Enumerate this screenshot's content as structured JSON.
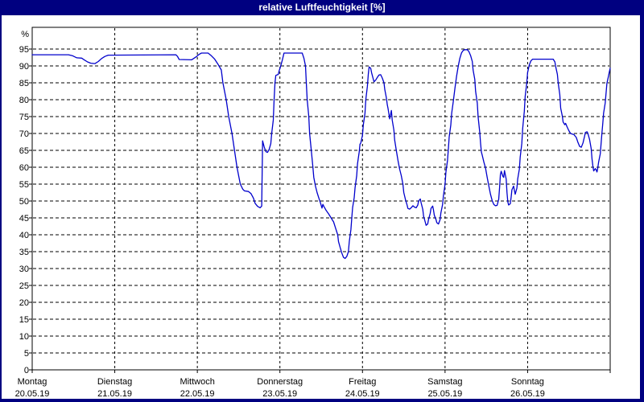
{
  "window": {
    "title": "relative Luftfeuchtigkeit [%]",
    "title_bar_color": "#000080",
    "border_color": "#000080",
    "background": "#ffffff"
  },
  "chart_data": {
    "type": "line",
    "title": "relative Luftfeuchtigkeit [%]",
    "ylabel": "%",
    "unit_label": "%",
    "y_axis": {
      "min": 0,
      "max": 101,
      "tick_step": 5,
      "ticks": [
        0,
        5,
        10,
        15,
        20,
        25,
        30,
        35,
        40,
        45,
        50,
        55,
        60,
        65,
        70,
        75,
        80,
        85,
        90,
        95
      ],
      "grid": "dashed"
    },
    "x_axis": {
      "grid": "dashed vertical line at each day boundary",
      "range_days": [
        0,
        7
      ],
      "days": [
        {
          "name": "Montag",
          "date": "20.05.19"
        },
        {
          "name": "Dienstag",
          "date": "21.05.19"
        },
        {
          "name": "Mittwoch",
          "date": "22.05.19"
        },
        {
          "name": "Donnerstag",
          "date": "23.05.19"
        },
        {
          "name": "Freitag",
          "date": "24.05.19"
        },
        {
          "name": "Samstag",
          "date": "25.05.19"
        },
        {
          "name": "Sonntag",
          "date": "26.05.19"
        }
      ]
    },
    "grid_color": "#000000",
    "legend": null,
    "series": [
      {
        "name": "relative Luftfeuchtigkeit",
        "color": "#0000cc",
        "x_unit": "day index (0 = Montag 20.05.19 00:00)",
        "points": [
          [
            0,
            93.3
          ],
          [
            0.44,
            93.3
          ],
          [
            0.49,
            93
          ],
          [
            0.54,
            92.4
          ],
          [
            0.6,
            92.3
          ],
          [
            0.63,
            91.8
          ],
          [
            0.67,
            91.2
          ],
          [
            0.71,
            90.8
          ],
          [
            0.76,
            90.7
          ],
          [
            0.8,
            91.3
          ],
          [
            0.84,
            92.2
          ],
          [
            0.88,
            92.8
          ],
          [
            0.92,
            93.2
          ],
          [
            1.74,
            93.3
          ],
          [
            1.76,
            92.8
          ],
          [
            1.78,
            91.9
          ],
          [
            1.93,
            91.8
          ],
          [
            1.98,
            92.6
          ],
          [
            2.02,
            93.4
          ],
          [
            2.05,
            93.8
          ],
          [
            2.13,
            93.8
          ],
          [
            2.17,
            93
          ],
          [
            2.21,
            92
          ],
          [
            2.25,
            90.5
          ],
          [
            2.29,
            88.8
          ],
          [
            2.31,
            85
          ],
          [
            2.35,
            80
          ],
          [
            2.38,
            75
          ],
          [
            2.42,
            70
          ],
          [
            2.45,
            65
          ],
          [
            2.48,
            60
          ],
          [
            2.52,
            55
          ],
          [
            2.55,
            53.5
          ],
          [
            2.57,
            53
          ],
          [
            2.62,
            52.8
          ],
          [
            2.65,
            52.2
          ],
          [
            2.68,
            50.8
          ],
          [
            2.7,
            49.3
          ],
          [
            2.73,
            48.4
          ],
          [
            2.76,
            48
          ],
          [
            2.78,
            48.5
          ],
          [
            2.79,
            67.8
          ],
          [
            2.81,
            66
          ],
          [
            2.83,
            64.6
          ],
          [
            2.85,
            64.4
          ],
          [
            2.87,
            65.3
          ],
          [
            2.89,
            67
          ],
          [
            2.9,
            70
          ],
          [
            2.92,
            74
          ],
          [
            2.93,
            80
          ],
          [
            2.94,
            85
          ],
          [
            2.95,
            87.2
          ],
          [
            2.98,
            87.5
          ],
          [
            2.99,
            88.5
          ],
          [
            3.01,
            90
          ],
          [
            3.03,
            91.8
          ],
          [
            3.05,
            93.8
          ],
          [
            3.27,
            93.8
          ],
          [
            3.29,
            92.3
          ],
          [
            3.31,
            90
          ],
          [
            3.32,
            85
          ],
          [
            3.33,
            80
          ],
          [
            3.35,
            75
          ],
          [
            3.36,
            70
          ],
          [
            3.38,
            65
          ],
          [
            3.4,
            60
          ],
          [
            3.41,
            57
          ],
          [
            3.43,
            54.5
          ],
          [
            3.45,
            52.5
          ],
          [
            3.47,
            51
          ],
          [
            3.49,
            49.5
          ],
          [
            3.51,
            47.9
          ],
          [
            3.52,
            49
          ],
          [
            3.53,
            48.5
          ],
          [
            3.56,
            47.2
          ],
          [
            3.59,
            46.2
          ],
          [
            3.62,
            45
          ],
          [
            3.65,
            43.8
          ],
          [
            3.67,
            42.3
          ],
          [
            3.7,
            40
          ],
          [
            3.71,
            38
          ],
          [
            3.73,
            36.2
          ],
          [
            3.75,
            34.6
          ],
          [
            3.77,
            33.3
          ],
          [
            3.79,
            33
          ],
          [
            3.81,
            33.6
          ],
          [
            3.83,
            35
          ],
          [
            3.84,
            38
          ],
          [
            3.86,
            41.5
          ],
          [
            3.87,
            45
          ],
          [
            3.88,
            48
          ],
          [
            3.9,
            51
          ],
          [
            3.91,
            54
          ],
          [
            3.93,
            57.5
          ],
          [
            3.94,
            61
          ],
          [
            3.96,
            64.5
          ],
          [
            3.97,
            66.8
          ],
          [
            3.98,
            67.2
          ],
          [
            4,
            69.5
          ],
          [
            4.01,
            72.5
          ],
          [
            4.03,
            76
          ],
          [
            4.04,
            80
          ],
          [
            4.06,
            84
          ],
          [
            4.07,
            87.5
          ],
          [
            4.08,
            89.7
          ],
          [
            4.1,
            89.3
          ],
          [
            4.11,
            88
          ],
          [
            4.13,
            86.2
          ],
          [
            4.14,
            85.3
          ],
          [
            4.16,
            85.8
          ],
          [
            4.18,
            86.6
          ],
          [
            4.2,
            87.3
          ],
          [
            4.22,
            87.4
          ],
          [
            4.24,
            86.4
          ],
          [
            4.26,
            85
          ],
          [
            4.27,
            83
          ],
          [
            4.29,
            80.5
          ],
          [
            4.3,
            78.5
          ],
          [
            4.31,
            77.3
          ],
          [
            4.33,
            74.3
          ],
          [
            4.35,
            76.8
          ],
          [
            4.36,
            74
          ],
          [
            4.38,
            71
          ],
          [
            4.39,
            68
          ],
          [
            4.41,
            65
          ],
          [
            4.43,
            62
          ],
          [
            4.45,
            59.5
          ],
          [
            4.47,
            57.5
          ],
          [
            4.49,
            55
          ],
          [
            4.5,
            52.5
          ],
          [
            4.52,
            50.5
          ],
          [
            4.54,
            48.8
          ],
          [
            4.55,
            47.8
          ],
          [
            4.57,
            47.6
          ],
          [
            4.59,
            48
          ],
          [
            4.61,
            48.6
          ],
          [
            4.63,
            48.2
          ],
          [
            4.65,
            48
          ],
          [
            4.67,
            48.8
          ],
          [
            4.68,
            50
          ],
          [
            4.7,
            50.6
          ],
          [
            4.71,
            49.5
          ],
          [
            4.73,
            47.5
          ],
          [
            4.74,
            45.5
          ],
          [
            4.76,
            43.8
          ],
          [
            4.77,
            42.8
          ],
          [
            4.79,
            43.2
          ],
          [
            4.8,
            44.5
          ],
          [
            4.82,
            46.3
          ],
          [
            4.83,
            47.8
          ],
          [
            4.85,
            48.5
          ],
          [
            4.86,
            47.3
          ],
          [
            4.87,
            45.8
          ],
          [
            4.89,
            44.5
          ],
          [
            4.9,
            43.6
          ],
          [
            4.92,
            43.2
          ],
          [
            4.94,
            44.5
          ],
          [
            4.95,
            46.5
          ],
          [
            4.97,
            49
          ],
          [
            4.98,
            51.5
          ],
          [
            5,
            55
          ],
          [
            5.01,
            58.5
          ],
          [
            5.03,
            62
          ],
          [
            5.04,
            65.5
          ],
          [
            5.05,
            69
          ],
          [
            5.07,
            72.5
          ],
          [
            5.08,
            76
          ],
          [
            5.1,
            79.5
          ],
          [
            5.12,
            83.5
          ],
          [
            5.14,
            87
          ],
          [
            5.16,
            90
          ],
          [
            5.18,
            92.3
          ],
          [
            5.2,
            93.9
          ],
          [
            5.22,
            94.6
          ],
          [
            5.24,
            94.8
          ],
          [
            5.27,
            94.8
          ],
          [
            5.29,
            94.2
          ],
          [
            5.31,
            93
          ],
          [
            5.33,
            91.3
          ],
          [
            5.34,
            88.8
          ],
          [
            5.36,
            86
          ],
          [
            5.37,
            82.5
          ],
          [
            5.39,
            79
          ],
          [
            5.4,
            75
          ],
          [
            5.42,
            70.5
          ],
          [
            5.43,
            67
          ],
          [
            5.44,
            64.5
          ],
          [
            5.45,
            63.6
          ],
          [
            5.47,
            61.5
          ],
          [
            5.49,
            59.8
          ],
          [
            5.51,
            57
          ],
          [
            5.53,
            54.5
          ],
          [
            5.55,
            52
          ],
          [
            5.57,
            50.2
          ],
          [
            5.59,
            49
          ],
          [
            5.61,
            48.6
          ],
          [
            5.63,
            48.7
          ],
          [
            5.65,
            50.5
          ],
          [
            5.66,
            54
          ],
          [
            5.67,
            57.8
          ],
          [
            5.68,
            58.8
          ],
          [
            5.7,
            57.3
          ],
          [
            5.71,
            57
          ],
          [
            5.72,
            59
          ],
          [
            5.74,
            56.5
          ],
          [
            5.75,
            52.5
          ],
          [
            5.76,
            49.8
          ],
          [
            5.77,
            48.8
          ],
          [
            5.79,
            49.2
          ],
          [
            5.8,
            51
          ],
          [
            5.81,
            53.3
          ],
          [
            5.83,
            54.4
          ],
          [
            5.84,
            53.2
          ],
          [
            5.85,
            52
          ],
          [
            5.87,
            53.8
          ],
          [
            5.88,
            56.5
          ],
          [
            5.9,
            59.5
          ],
          [
            5.91,
            63
          ],
          [
            5.93,
            67
          ],
          [
            5.94,
            71.5
          ],
          [
            5.96,
            76.5
          ],
          [
            5.97,
            81
          ],
          [
            5.99,
            85
          ],
          [
            6,
            88
          ],
          [
            6.02,
            90.3
          ],
          [
            6.04,
            91.5
          ],
          [
            6.06,
            92
          ],
          [
            6.31,
            92
          ],
          [
            6.33,
            91.2
          ],
          [
            6.34,
            89.8
          ],
          [
            6.36,
            87.5
          ],
          [
            6.37,
            85
          ],
          [
            6.39,
            81.5
          ],
          [
            6.4,
            77.5
          ],
          [
            6.42,
            75.2
          ],
          [
            6.43,
            73.4
          ],
          [
            6.45,
            72.6
          ],
          [
            6.46,
            73
          ],
          [
            6.48,
            71.8
          ],
          [
            6.5,
            70.8
          ],
          [
            6.52,
            70
          ],
          [
            6.54,
            69.8
          ],
          [
            6.56,
            69.7
          ],
          [
            6.59,
            68.8
          ],
          [
            6.61,
            67.3
          ],
          [
            6.63,
            66.2
          ],
          [
            6.65,
            65.9
          ],
          [
            6.67,
            67.2
          ],
          [
            6.69,
            69.2
          ],
          [
            6.7,
            70.3
          ],
          [
            6.72,
            70.5
          ],
          [
            6.73,
            70
          ],
          [
            6.75,
            68.2
          ],
          [
            6.77,
            65.5
          ],
          [
            6.78,
            62.5
          ],
          [
            6.79,
            60.3
          ],
          [
            6.8,
            58.9
          ],
          [
            6.82,
            59.6
          ],
          [
            6.83,
            59.2
          ],
          [
            6.84,
            58.6
          ],
          [
            6.85,
            59.8
          ],
          [
            6.86,
            61.5
          ],
          [
            6.88,
            64
          ],
          [
            6.89,
            67
          ],
          [
            6.9,
            70
          ],
          [
            6.91,
            73
          ],
          [
            6.92,
            76
          ],
          [
            6.94,
            79
          ],
          [
            6.95,
            82
          ],
          [
            6.96,
            84.8
          ],
          [
            6.98,
            87
          ],
          [
            6.99,
            88.3
          ],
          [
            7,
            89.3
          ]
        ]
      }
    ]
  }
}
